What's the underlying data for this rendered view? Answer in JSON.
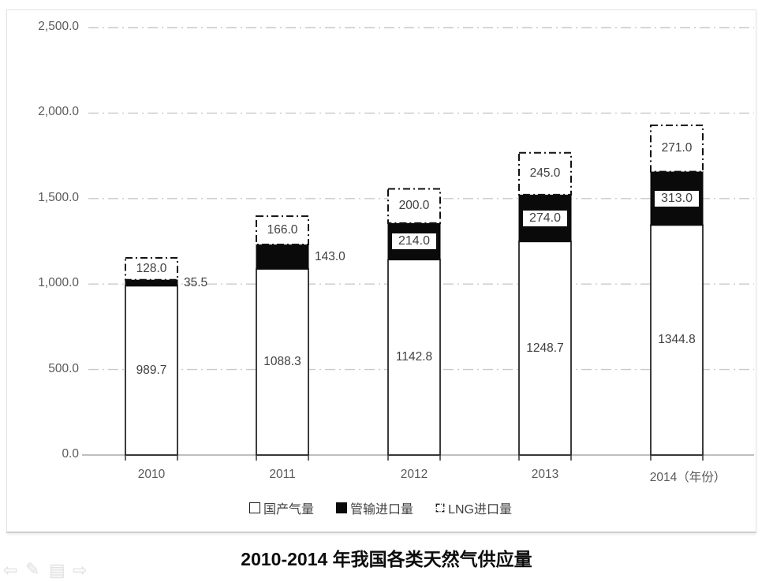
{
  "chart_data": {
    "type": "bar",
    "stacked": true,
    "title": "2010-2014 年我国各类天然气供应量",
    "categories": [
      "2010",
      "2011",
      "2012",
      "2013",
      "2014"
    ],
    "x_labels": [
      "2010",
      "2011",
      "2012",
      "2013",
      "2014（年份）"
    ],
    "series": [
      {
        "name": "国产气量",
        "style": "white-fill-black-border",
        "values": [
          989.7,
          1088.3,
          1142.8,
          1248.7,
          1344.8
        ],
        "labels": [
          "989.7",
          "1088.3",
          "1142.8",
          "1248.7",
          "1344.8"
        ],
        "label_placement": [
          "inside",
          "inside",
          "inside",
          "inside",
          "inside"
        ]
      },
      {
        "name": "管输进口量",
        "style": "black-fill",
        "values": [
          35.5,
          143.0,
          214.0,
          274.0,
          313.0
        ],
        "labels": [
          "35.5",
          "143.0",
          "214.0",
          "274.0",
          "313.0"
        ],
        "label_placement": [
          "outside-right",
          "outside-right",
          "boxed",
          "boxed",
          "boxed"
        ]
      },
      {
        "name": "LNG进口量",
        "style": "white-fill-dash-dot-border",
        "values": [
          128.0,
          166.0,
          200.0,
          245.0,
          271.0
        ],
        "labels": [
          "128.0",
          "166.0",
          "200.0",
          "245.0",
          "271.0"
        ],
        "label_placement": [
          "inside",
          "inside",
          "inside",
          "inside",
          "inside"
        ]
      }
    ],
    "ylim": [
      0,
      2500
    ],
    "y_tick_step": 500,
    "y_tick_labels": [
      "0.0",
      "500.0",
      "1,000.0",
      "1,500.0",
      "2,000.0",
      "2,500.0"
    ],
    "gridlines": "dash-dot-horizontal",
    "legend_position": "bottom"
  },
  "colors": {
    "grid": "#c9c9c9",
    "axis": "#bfbfbf",
    "bar_border": "#262626",
    "black_fill": "#0a0a0a",
    "label_text": "#404040",
    "axis_text": "#595959",
    "frame_border": "#e3e3e3"
  },
  "presenter_nav": {
    "icons": [
      "previous-slide",
      "pen-tool",
      "slide-thumbnails",
      "next-slide"
    ],
    "glyphs": [
      "⇦",
      "✎",
      "▤",
      "⇨"
    ]
  }
}
